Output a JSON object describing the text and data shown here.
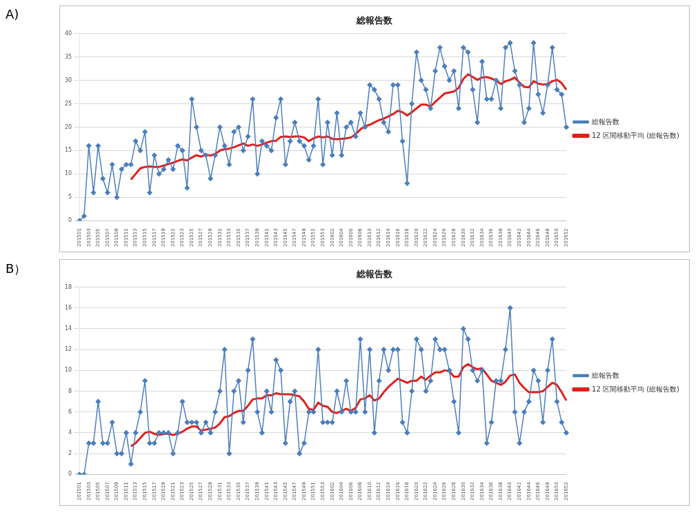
{
  "chart_data": [
    {
      "type": "line",
      "title": "総報告数",
      "annotations": [
        "A)"
      ],
      "categories": [
        "201501",
        null,
        "201503",
        null,
        "201505",
        null,
        "201507",
        null,
        "201509",
        null,
        "201511",
        null,
        "201513",
        null,
        "201515",
        null,
        "201517",
        null,
        "201519",
        null,
        "201521",
        null,
        "201523",
        null,
        "201525",
        null,
        "201527",
        null,
        "201529",
        null,
        "201531",
        null,
        "201533",
        null,
        "201535",
        null,
        "201537",
        null,
        "201539",
        null,
        "201541",
        null,
        "201543",
        null,
        "201545",
        null,
        "201547",
        null,
        "201549",
        null,
        "201551",
        null,
        "201553",
        null,
        "201602",
        null,
        "201604",
        null,
        "201606",
        null,
        "201608",
        null,
        "201610",
        null,
        "201612",
        null,
        "201614",
        null,
        "201616",
        null,
        "201618",
        null,
        "201620",
        null,
        "201622",
        null,
        "201624",
        null,
        "201626",
        null,
        "201628",
        null,
        "201630",
        null,
        "201632",
        null,
        "201634",
        null,
        "201636",
        null,
        "201638",
        null,
        "201640",
        null,
        "201642",
        null,
        "201644",
        null,
        "201646",
        null,
        "201648",
        null,
        "201650",
        null,
        "201652"
      ],
      "ylim": [
        0,
        40
      ],
      "yticks": [
        0,
        5,
        10,
        15,
        20,
        25,
        30,
        35,
        40
      ],
      "grid": "y",
      "legend": "right",
      "series": [
        {
          "name": "総報告数",
          "color": "#4a7ebb",
          "marker": "diamond",
          "values": [
            0,
            1,
            16,
            6,
            16,
            9,
            6,
            12,
            5,
            11,
            12,
            12,
            17,
            15,
            19,
            6,
            14,
            10,
            11,
            13,
            11,
            16,
            15,
            7,
            26,
            20,
            15,
            14,
            9,
            14,
            20,
            16,
            12,
            19,
            20,
            15,
            18,
            26,
            10,
            17,
            16,
            15,
            22,
            26,
            12,
            17,
            21,
            17,
            16,
            13,
            16,
            26,
            12,
            21,
            14,
            23,
            14,
            20,
            21,
            18,
            23,
            20,
            29,
            28,
            26,
            21,
            19,
            29,
            29,
            17,
            8,
            25,
            36,
            30,
            28,
            24,
            32,
            37,
            33,
            30,
            32,
            24,
            37,
            36,
            28,
            21,
            34,
            26,
            26,
            30,
            24,
            37,
            38,
            32,
            29,
            21,
            24,
            38,
            27,
            23,
            29,
            37,
            28,
            27,
            20
          ]
        },
        {
          "name": "12 区間移動平均 (総報告数)",
          "color": "#e0201c",
          "marker": "none",
          "values": [
            null,
            null,
            null,
            null,
            null,
            null,
            null,
            null,
            null,
            null,
            null,
            8.8,
            10,
            11.2,
            11.5,
            11.6,
            11.5,
            11.5,
            11.8,
            12.1,
            12.4,
            12.8,
            13.1,
            12.9,
            13.5,
            14,
            13.7,
            14.2,
            13.9,
            14.3,
            15,
            15.3,
            15.4,
            15.7,
            16.1,
            16.5,
            16,
            16.3,
            16,
            16.3,
            16.7,
            17,
            17.1,
            17.9,
            18,
            17.9,
            18,
            18,
            17.8,
            17,
            17.6,
            18,
            17.8,
            18,
            17.5,
            17.4,
            17.5,
            17.6,
            17.8,
            18.5,
            19.5,
            20.2,
            20.5,
            21,
            21.5,
            21.8,
            22.3,
            22.8,
            23.5,
            23.2,
            22.5,
            23.2,
            24,
            24.8,
            24.8,
            24.4,
            25.4,
            26.3,
            27.2,
            27.4,
            27.6,
            28.4,
            30.3,
            31.3,
            30.7,
            30.1,
            30.6,
            30.7,
            30.4,
            30,
            29.2,
            29.8,
            30.1,
            30.6,
            29.5,
            28.6,
            28.5,
            29.8,
            29.3,
            29.1,
            29.2,
            29.8,
            30.1,
            29.4,
            28
          ]
        }
      ]
    },
    {
      "type": "line",
      "title": "総報告数",
      "annotations": [
        "B）"
      ],
      "categories": [
        "201501",
        null,
        "201503",
        null,
        "201505",
        null,
        "201507",
        null,
        "201509",
        null,
        "201511",
        null,
        "201513",
        null,
        "201515",
        null,
        "201517",
        null,
        "201519",
        null,
        "201521",
        null,
        "201523",
        null,
        "201525",
        null,
        "201527",
        null,
        "201529",
        null,
        "201531",
        null,
        "201533",
        null,
        "201535",
        null,
        "201537",
        null,
        "201539",
        null,
        "201541",
        null,
        "201543",
        null,
        "201545",
        null,
        "201547",
        null,
        "201549",
        null,
        "201551",
        null,
        "201553",
        null,
        "201602",
        null,
        "201604",
        null,
        "201606",
        null,
        "201608",
        null,
        "201610",
        null,
        "201612",
        null,
        "201614",
        null,
        "201616",
        null,
        "201618",
        null,
        "201620",
        null,
        "201622",
        null,
        "201624",
        null,
        "201626",
        null,
        "201628",
        null,
        "201630",
        null,
        "201632",
        null,
        "201634",
        null,
        "201636",
        null,
        "201638",
        null,
        "201640",
        null,
        "201642",
        null,
        "201644",
        null,
        "201646",
        null,
        "201648",
        null,
        "201650",
        null,
        "201652"
      ],
      "ylim": [
        0,
        18
      ],
      "yticks": [
        0,
        2,
        4,
        6,
        8,
        10,
        12,
        14,
        16,
        18
      ],
      "grid": "y",
      "legend": "right",
      "series": [
        {
          "name": "総報告数",
          "color": "#4a7ebb",
          "marker": "diamond",
          "values": [
            0,
            0,
            3,
            3,
            7,
            3,
            3,
            5,
            2,
            2,
            4,
            1,
            4,
            6,
            9,
            3,
            3,
            4,
            4,
            4,
            2,
            4,
            7,
            5,
            5,
            5,
            4,
            5,
            4,
            6,
            8,
            12,
            2,
            8,
            9,
            5,
            10,
            13,
            6,
            4,
            8,
            6,
            11,
            10,
            3,
            7,
            8,
            2,
            3,
            6,
            6,
            12,
            5,
            5,
            5,
            8,
            6,
            9,
            6,
            6,
            13,
            6,
            12,
            4,
            9,
            12,
            10,
            12,
            12,
            5,
            4,
            8,
            13,
            12,
            8,
            9,
            13,
            12,
            12,
            10,
            7,
            4,
            14,
            13,
            10,
            9,
            10,
            3,
            5,
            9,
            9,
            12,
            16,
            6,
            3,
            6,
            7,
            10,
            9,
            5,
            10,
            13,
            7,
            5,
            4
          ]
        },
        {
          "name": "12 区間移動平均 (総報告数)",
          "color": "#e0201c",
          "marker": "none",
          "values": [
            null,
            null,
            null,
            null,
            null,
            null,
            null,
            null,
            null,
            null,
            null,
            2.7,
            3,
            3.5,
            4,
            4.1,
            3.9,
            3.8,
            3.9,
            3.9,
            3.8,
            3.9,
            4.1,
            4.4,
            4.6,
            4.6,
            4.2,
            4.3,
            4.4,
            4.5,
            4.9,
            5.5,
            5.6,
            5.9,
            6.1,
            6.1,
            6.6,
            7.2,
            7.3,
            7.3,
            7.6,
            7.6,
            7.8,
            7.7,
            7.7,
            7.7,
            7.6,
            7.5,
            7,
            6.3,
            6.2,
            6.9,
            6.6,
            6.5,
            6,
            5.9,
            6.1,
            6.3,
            6.1,
            6.4,
            7.2,
            7.3,
            7.6,
            7.1,
            7.3,
            7.9,
            8.4,
            8.8,
            9.2,
            9,
            8.8,
            9,
            9,
            9.4,
            9.1,
            9.5,
            9.8,
            9.8,
            10,
            9.9,
            9.4,
            9.4,
            10.3,
            10.6,
            10.3,
            10.1,
            10.2,
            9.6,
            9,
            8.8,
            8.6,
            8.9,
            9.5,
            9.6,
            8.8,
            8.3,
            7.9,
            7.9,
            7.9,
            8,
            8.4,
            8.8,
            8.6,
            7.9,
            7.1
          ]
        }
      ]
    }
  ]
}
